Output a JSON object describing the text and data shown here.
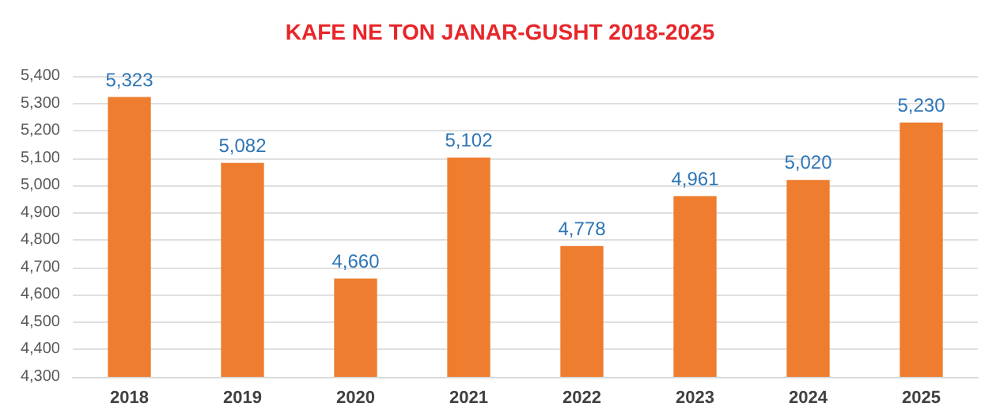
{
  "chart_data": {
    "type": "bar",
    "title": "KAFE NE TON JANAR-GUSHT 2018-2025",
    "categories": [
      "2018",
      "2019",
      "2020",
      "2021",
      "2022",
      "2023",
      "2024",
      "2025"
    ],
    "values": [
      5323,
      5082,
      4660,
      5102,
      4778,
      4961,
      5020,
      5230
    ],
    "value_labels": [
      "5,323",
      "5,082",
      "4,660",
      "5,102",
      "4,778",
      "4,961",
      "5,020",
      "5,230"
    ],
    "color": "#ee7d2f",
    "ylim": [
      4300,
      5400
    ],
    "yticks": [
      {
        "value": 4300,
        "label": "4,300"
      },
      {
        "value": 4400,
        "label": "4,400"
      },
      {
        "value": 4500,
        "label": "4,500"
      },
      {
        "value": 4600,
        "label": "4,600"
      },
      {
        "value": 4700,
        "label": "4,700"
      },
      {
        "value": 4800,
        "label": "4,800"
      },
      {
        "value": 4900,
        "label": "4,900"
      },
      {
        "value": 5000,
        "label": "5,000"
      },
      {
        "value": 5100,
        "label": "5,100"
      },
      {
        "value": 5200,
        "label": "5,200"
      },
      {
        "value": 5300,
        "label": "5,300"
      },
      {
        "value": 5400,
        "label": "5,400"
      }
    ],
    "grid": true
  }
}
